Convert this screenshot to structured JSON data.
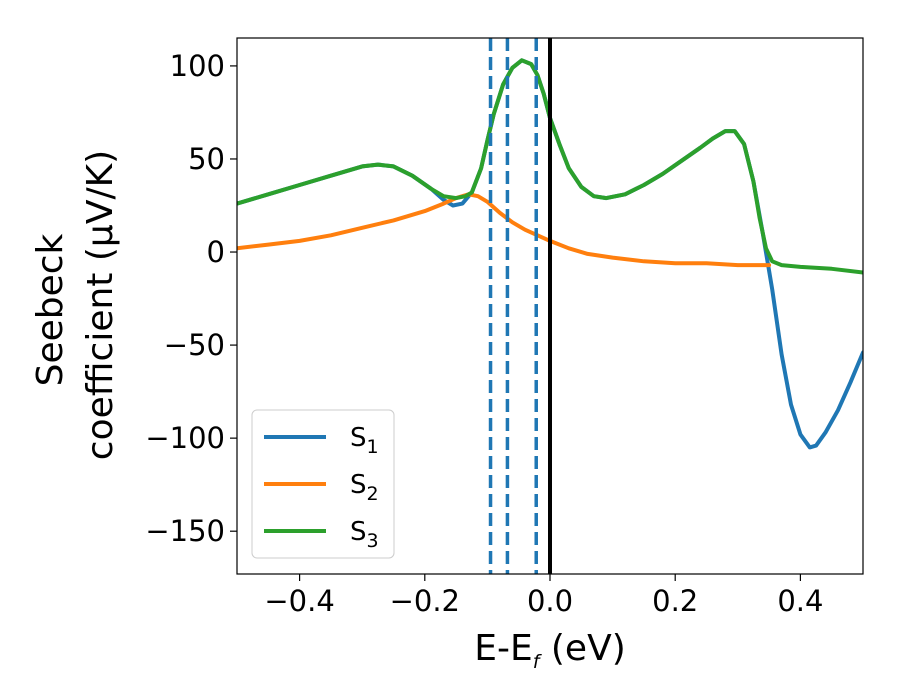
{
  "chart_data": {
    "type": "line",
    "xlabel": "E-E",
    "xlabel_sub": "f",
    "xlabel_unit": " (eV)",
    "ylabel_line1": "Seebeck",
    "ylabel_line2": "coefficient  (μV/K)",
    "xlim": [
      -0.5,
      0.5
    ],
    "ylim": [
      -173,
      115
    ],
    "xticks": [
      -0.4,
      -0.2,
      0.0,
      0.2,
      0.4
    ],
    "xtick_labels": [
      "−0.4",
      "−0.2",
      "0.0",
      "0.2",
      "0.4"
    ],
    "yticks": [
      100,
      50,
      0,
      -50,
      -100,
      -150
    ],
    "ytick_labels": [
      "100",
      "50",
      "0",
      "−50",
      "−100",
      "−150"
    ],
    "grid": false,
    "legend_position": "bottom-left",
    "vlines": [
      {
        "x": -0.095,
        "style": "dashed",
        "color": "#1f77b4"
      },
      {
        "x": -0.068,
        "style": "dashed",
        "color": "#1f77b4"
      },
      {
        "x": -0.022,
        "style": "dashed",
        "color": "#1f77b4"
      },
      {
        "x": 0.0,
        "style": "solid",
        "color": "#000000"
      }
    ],
    "series": [
      {
        "name": "S",
        "sub": "1",
        "color": "#1f77b4",
        "points": [
          [
            -0.5,
            26
          ],
          [
            -0.45,
            31
          ],
          [
            -0.4,
            36
          ],
          [
            -0.35,
            41
          ],
          [
            -0.3,
            46
          ],
          [
            -0.275,
            47
          ],
          [
            -0.25,
            46
          ],
          [
            -0.22,
            41
          ],
          [
            -0.19,
            34
          ],
          [
            -0.17,
            28
          ],
          [
            -0.155,
            25
          ],
          [
            -0.14,
            26
          ],
          [
            -0.125,
            32
          ],
          [
            -0.11,
            45
          ],
          [
            -0.1,
            60
          ],
          [
            -0.09,
            74
          ],
          [
            -0.075,
            90
          ],
          [
            -0.06,
            99
          ],
          [
            -0.045,
            103
          ],
          [
            -0.03,
            101
          ],
          [
            -0.02,
            95
          ],
          [
            -0.01,
            85
          ],
          [
            0.0,
            72
          ],
          [
            0.015,
            58
          ],
          [
            0.03,
            45
          ],
          [
            0.05,
            35
          ],
          [
            0.07,
            30
          ],
          [
            0.09,
            29
          ],
          [
            0.12,
            31
          ],
          [
            0.15,
            36
          ],
          [
            0.18,
            42
          ],
          [
            0.21,
            49
          ],
          [
            0.24,
            56
          ],
          [
            0.26,
            61
          ],
          [
            0.28,
            65
          ],
          [
            0.295,
            65
          ],
          [
            0.31,
            58
          ],
          [
            0.325,
            38
          ],
          [
            0.34,
            10
          ],
          [
            0.355,
            -20
          ],
          [
            0.37,
            -55
          ],
          [
            0.385,
            -82
          ],
          [
            0.4,
            -98
          ],
          [
            0.415,
            -105
          ],
          [
            0.425,
            -104
          ],
          [
            0.44,
            -97
          ],
          [
            0.46,
            -85
          ],
          [
            0.48,
            -70
          ],
          [
            0.5,
            -54
          ]
        ]
      },
      {
        "name": "S",
        "sub": "2",
        "color": "#ff7f0e",
        "points": [
          [
            -0.5,
            2
          ],
          [
            -0.45,
            4
          ],
          [
            -0.4,
            6
          ],
          [
            -0.35,
            9
          ],
          [
            -0.3,
            13
          ],
          [
            -0.25,
            17
          ],
          [
            -0.2,
            22
          ],
          [
            -0.17,
            26
          ],
          [
            -0.15,
            29
          ],
          [
            -0.13,
            31
          ],
          [
            -0.115,
            30
          ],
          [
            -0.1,
            27
          ],
          [
            -0.08,
            21
          ],
          [
            -0.06,
            16
          ],
          [
            -0.04,
            12
          ],
          [
            -0.02,
            9
          ],
          [
            0.0,
            6
          ],
          [
            0.03,
            2
          ],
          [
            0.06,
            -1
          ],
          [
            0.1,
            -3
          ],
          [
            0.15,
            -5
          ],
          [
            0.2,
            -6
          ],
          [
            0.25,
            -6
          ],
          [
            0.3,
            -7
          ],
          [
            0.35,
            -7
          ]
        ]
      },
      {
        "name": "S",
        "sub": "3",
        "color": "#2ca02c",
        "points": [
          [
            -0.5,
            26
          ],
          [
            -0.45,
            31
          ],
          [
            -0.4,
            36
          ],
          [
            -0.35,
            41
          ],
          [
            -0.3,
            46
          ],
          [
            -0.275,
            47
          ],
          [
            -0.25,
            46
          ],
          [
            -0.22,
            41
          ],
          [
            -0.19,
            34
          ],
          [
            -0.17,
            30
          ],
          [
            -0.15,
            29
          ],
          [
            -0.135,
            30
          ],
          [
            -0.125,
            32
          ],
          [
            -0.11,
            45
          ],
          [
            -0.1,
            60
          ],
          [
            -0.09,
            74
          ],
          [
            -0.075,
            90
          ],
          [
            -0.06,
            99
          ],
          [
            -0.045,
            103
          ],
          [
            -0.03,
            101
          ],
          [
            -0.02,
            95
          ],
          [
            -0.01,
            85
          ],
          [
            0.0,
            72
          ],
          [
            0.015,
            58
          ],
          [
            0.03,
            45
          ],
          [
            0.05,
            35
          ],
          [
            0.07,
            30
          ],
          [
            0.09,
            29
          ],
          [
            0.12,
            31
          ],
          [
            0.15,
            36
          ],
          [
            0.18,
            42
          ],
          [
            0.21,
            49
          ],
          [
            0.24,
            56
          ],
          [
            0.26,
            61
          ],
          [
            0.28,
            65
          ],
          [
            0.295,
            65
          ],
          [
            0.31,
            58
          ],
          [
            0.325,
            38
          ],
          [
            0.335,
            18
          ],
          [
            0.345,
            2
          ],
          [
            0.355,
            -5
          ],
          [
            0.37,
            -7
          ],
          [
            0.4,
            -8
          ],
          [
            0.45,
            -9
          ],
          [
            0.5,
            -11
          ]
        ]
      }
    ]
  }
}
